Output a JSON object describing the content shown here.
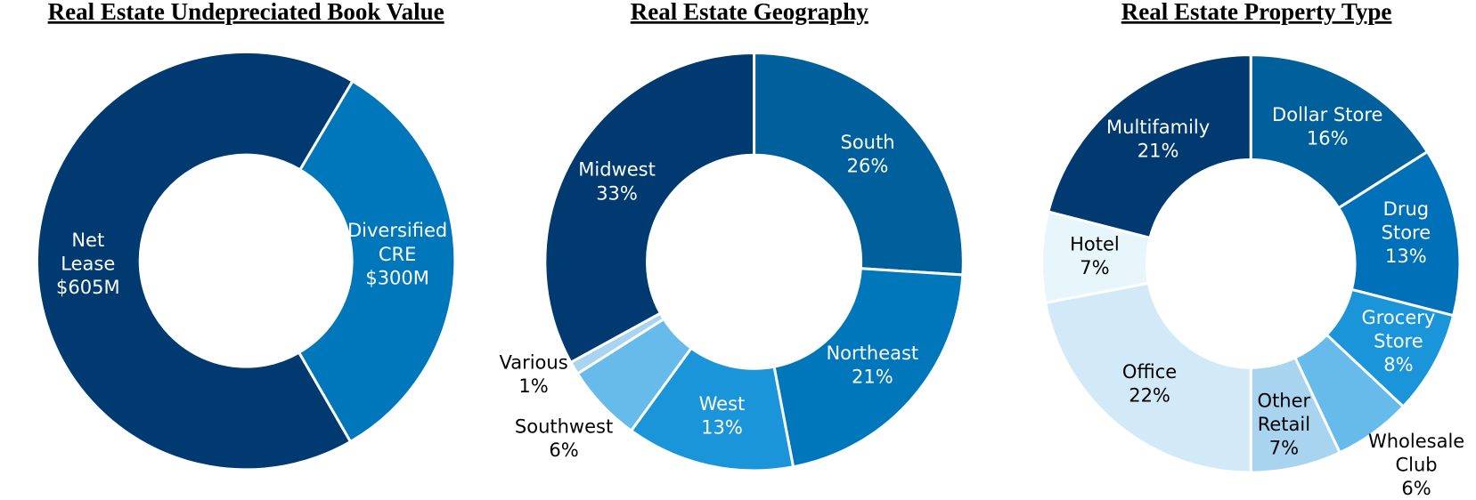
{
  "chart_data": [
    {
      "type": "donut",
      "title": "Real Estate Undepreciated Book Value",
      "categories": [
        "Net\nLease",
        "Diversified\nCRE"
      ],
      "values": [
        605,
        300
      ],
      "value_labels": [
        "$605M",
        "$300M"
      ],
      "colors": [
        "#003a70",
        "#0077bb"
      ]
    },
    {
      "type": "donut",
      "title": "Real Estate Geography",
      "categories": [
        "South",
        "Northeast",
        "West",
        "Southwest",
        "Various",
        "Midwest"
      ],
      "values": [
        26,
        21,
        13,
        6,
        1,
        33
      ],
      "value_labels": [
        "26%",
        "21%",
        "13%",
        "6%",
        "1%",
        "33%"
      ],
      "colors": [
        "#00609c",
        "#0077bb",
        "#1b95da",
        "#66bbea",
        "#a8d4f0",
        "#003a70"
      ]
    },
    {
      "type": "donut",
      "title": "Real Estate Property Type",
      "categories": [
        "Dollar Store",
        "Drug\nStore",
        "Grocery\nStore",
        "Wholesale\nClub",
        "Other\nRetail",
        "Office",
        "Hotel",
        "Multifamily"
      ],
      "values": [
        16,
        13,
        8,
        6,
        7,
        22,
        7,
        21
      ],
      "value_labels": [
        "16%",
        "13%",
        "8%",
        "6%",
        "7%",
        "22%",
        "7%",
        "21%"
      ],
      "colors": [
        "#00609c",
        "#0070b8",
        "#1b95da",
        "#66bbea",
        "#a8d4f0",
        "#d2e9f7",
        "#e6f6fb",
        "#003a70"
      ]
    }
  ]
}
